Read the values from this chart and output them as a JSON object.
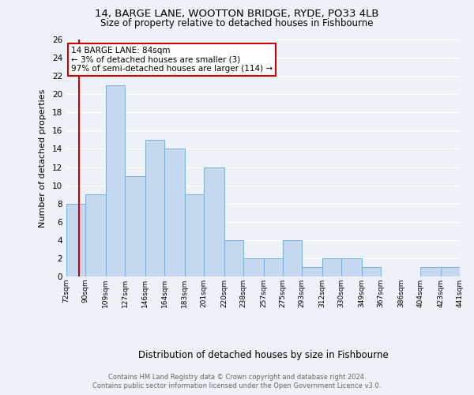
{
  "title1": "14, BARGE LANE, WOOTTON BRIDGE, RYDE, PO33 4LB",
  "title2": "Size of property relative to detached houses in Fishbourne",
  "xlabel": "Distribution of detached houses by size in Fishbourne",
  "ylabel": "Number of detached properties",
  "bins": [
    72,
    90,
    109,
    127,
    146,
    164,
    183,
    201,
    220,
    238,
    257,
    275,
    293,
    312,
    330,
    349,
    367,
    386,
    404,
    423,
    441
  ],
  "counts": [
    8,
    9,
    21,
    11,
    15,
    14,
    9,
    12,
    4,
    2,
    2,
    4,
    1,
    2,
    2,
    1,
    0,
    0,
    1,
    1
  ],
  "bar_color": "#c5d8f0",
  "bar_edge_color": "#7bafd4",
  "ref_line_x": 84,
  "ref_line_color": "#cc0000",
  "annotation_text": "14 BARGE LANE: 84sqm\n← 3% of detached houses are smaller (3)\n97% of semi-detached houses are larger (114) →",
  "annotation_box_color": "#ffffff",
  "annotation_box_edge_color": "#cc0000",
  "ylim": [
    0,
    26
  ],
  "yticks": [
    0,
    2,
    4,
    6,
    8,
    10,
    12,
    14,
    16,
    18,
    20,
    22,
    24,
    26
  ],
  "tick_labels": [
    "72sqm",
    "90sqm",
    "109sqm",
    "127sqm",
    "146sqm",
    "164sqm",
    "183sqm",
    "201sqm",
    "220sqm",
    "238sqm",
    "257sqm",
    "275sqm",
    "293sqm",
    "312sqm",
    "330sqm",
    "349sqm",
    "367sqm",
    "386sqm",
    "404sqm",
    "423sqm",
    "441sqm"
  ],
  "footer_line1": "Contains HM Land Registry data © Crown copyright and database right 2024.",
  "footer_line2": "Contains public sector information licensed under the Open Government Licence v3.0.",
  "bg_color": "#eef2f8",
  "plot_bg_color": "#eef2f8"
}
